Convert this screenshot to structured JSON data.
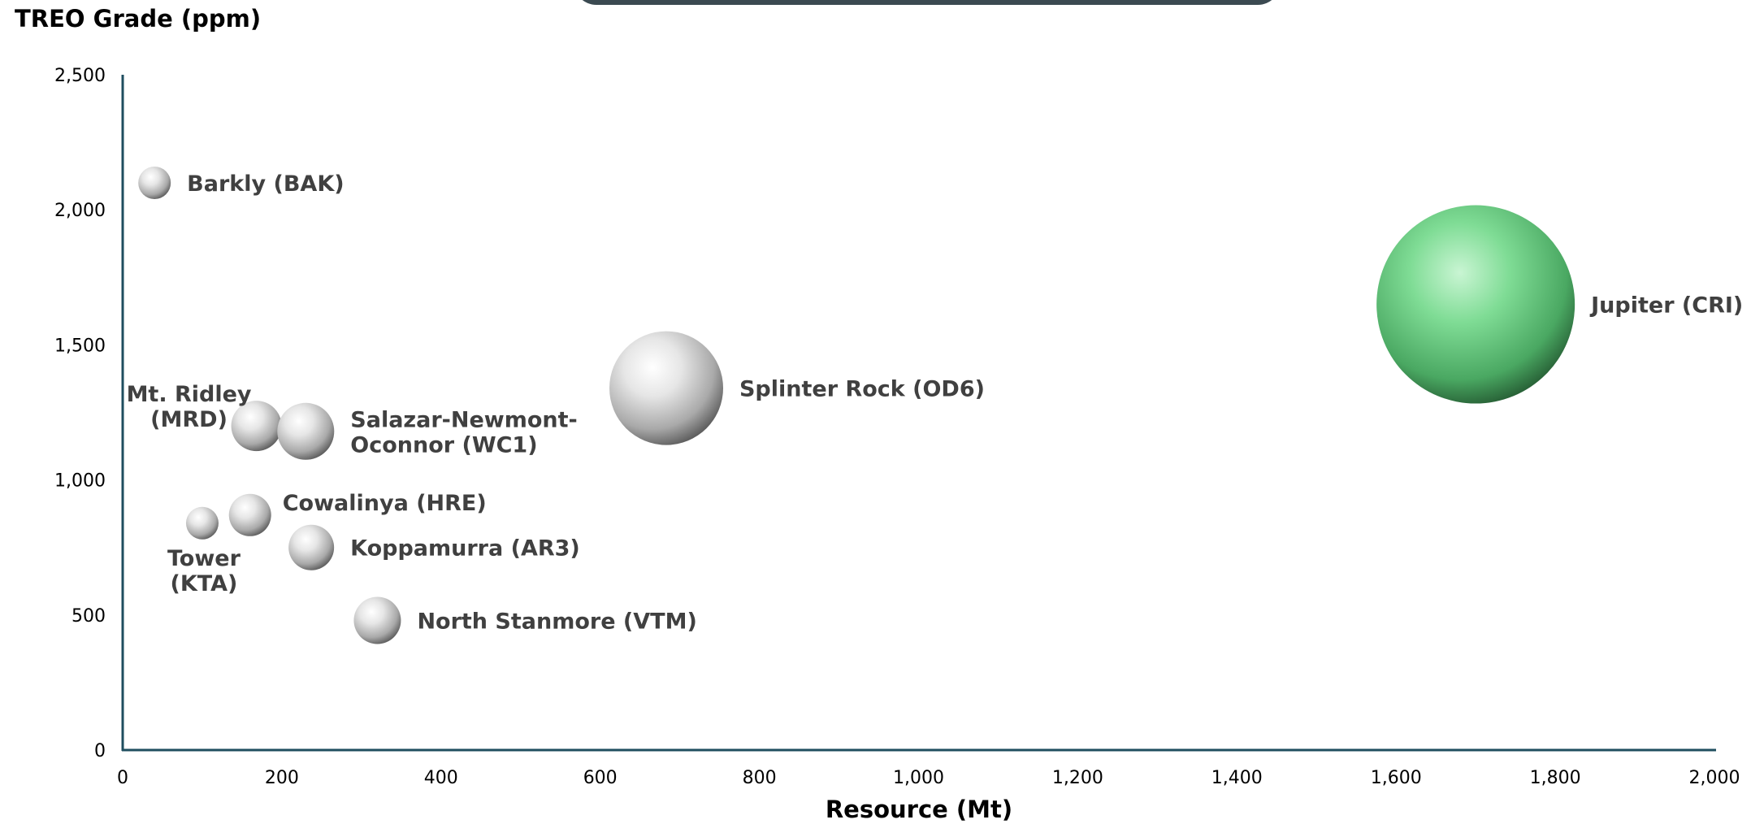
{
  "chart_data": {
    "type": "bubble",
    "xlabel": "Resource (Mt)",
    "ylabel": "TREO Grade (ppm)",
    "xlim": [
      0,
      2000
    ],
    "ylim": [
      0,
      2500
    ],
    "x_ticks": [
      "0",
      "200",
      "400",
      "600",
      "800",
      "1,000",
      "1,200",
      "1,400",
      "1,600",
      "1,800",
      "2,000"
    ],
    "y_ticks": [
      "0",
      "500",
      "1,000",
      "1,500",
      "2,000",
      "2,500"
    ],
    "grid": false,
    "points": [
      {
        "label": [
          "Barkly (BAK)"
        ],
        "x": 40,
        "y": 2100,
        "size": 1.0,
        "color": "#cfcfcf",
        "label_pos": "right"
      },
      {
        "label": [
          "Mt. Ridley",
          "(MRD)"
        ],
        "x": 168,
        "y": 1200,
        "size": 1.55,
        "color": "#cfcfcf",
        "label_pos": "upper-left"
      },
      {
        "label": [
          "Salazar-Newmont-",
          "Oconnor (WC1)"
        ],
        "x": 230,
        "y": 1180,
        "size": 1.75,
        "color": "#cfcfcf",
        "label_pos": "right"
      },
      {
        "label": [
          "Cowalinya (HRE)"
        ],
        "x": 160,
        "y": 870,
        "size": 1.3,
        "color": "#cfcfcf",
        "label_pos": "upper-right"
      },
      {
        "label": [
          "Tower",
          "(KTA)"
        ],
        "x": 100,
        "y": 840,
        "size": 1.0,
        "color": "#cfcfcf",
        "label_pos": "below"
      },
      {
        "label": [
          "Koppamurra (AR3)"
        ],
        "x": 237,
        "y": 750,
        "size": 1.4,
        "color": "#cfcfcf",
        "label_pos": "right"
      },
      {
        "label": [
          "North Stanmore (VTM)"
        ],
        "x": 320,
        "y": 480,
        "size": 1.45,
        "color": "#cfcfcf",
        "label_pos": "right"
      },
      {
        "label": [
          "Splinter Rock (OD6)"
        ],
        "x": 683,
        "y": 1340,
        "size": 3.5,
        "color": "#cfcfcf",
        "label_pos": "right"
      },
      {
        "label": [
          "Jupiter (CRI)"
        ],
        "x": 1700,
        "y": 1650,
        "size": 6.1,
        "color": "#6fd48a",
        "label_pos": "right"
      }
    ]
  },
  "colors": {
    "axis": "#1f4e5f",
    "grey_bubble": "#cfcfcf",
    "green_bubble": "#6fd48a",
    "header_bar": "#3b4a51"
  }
}
